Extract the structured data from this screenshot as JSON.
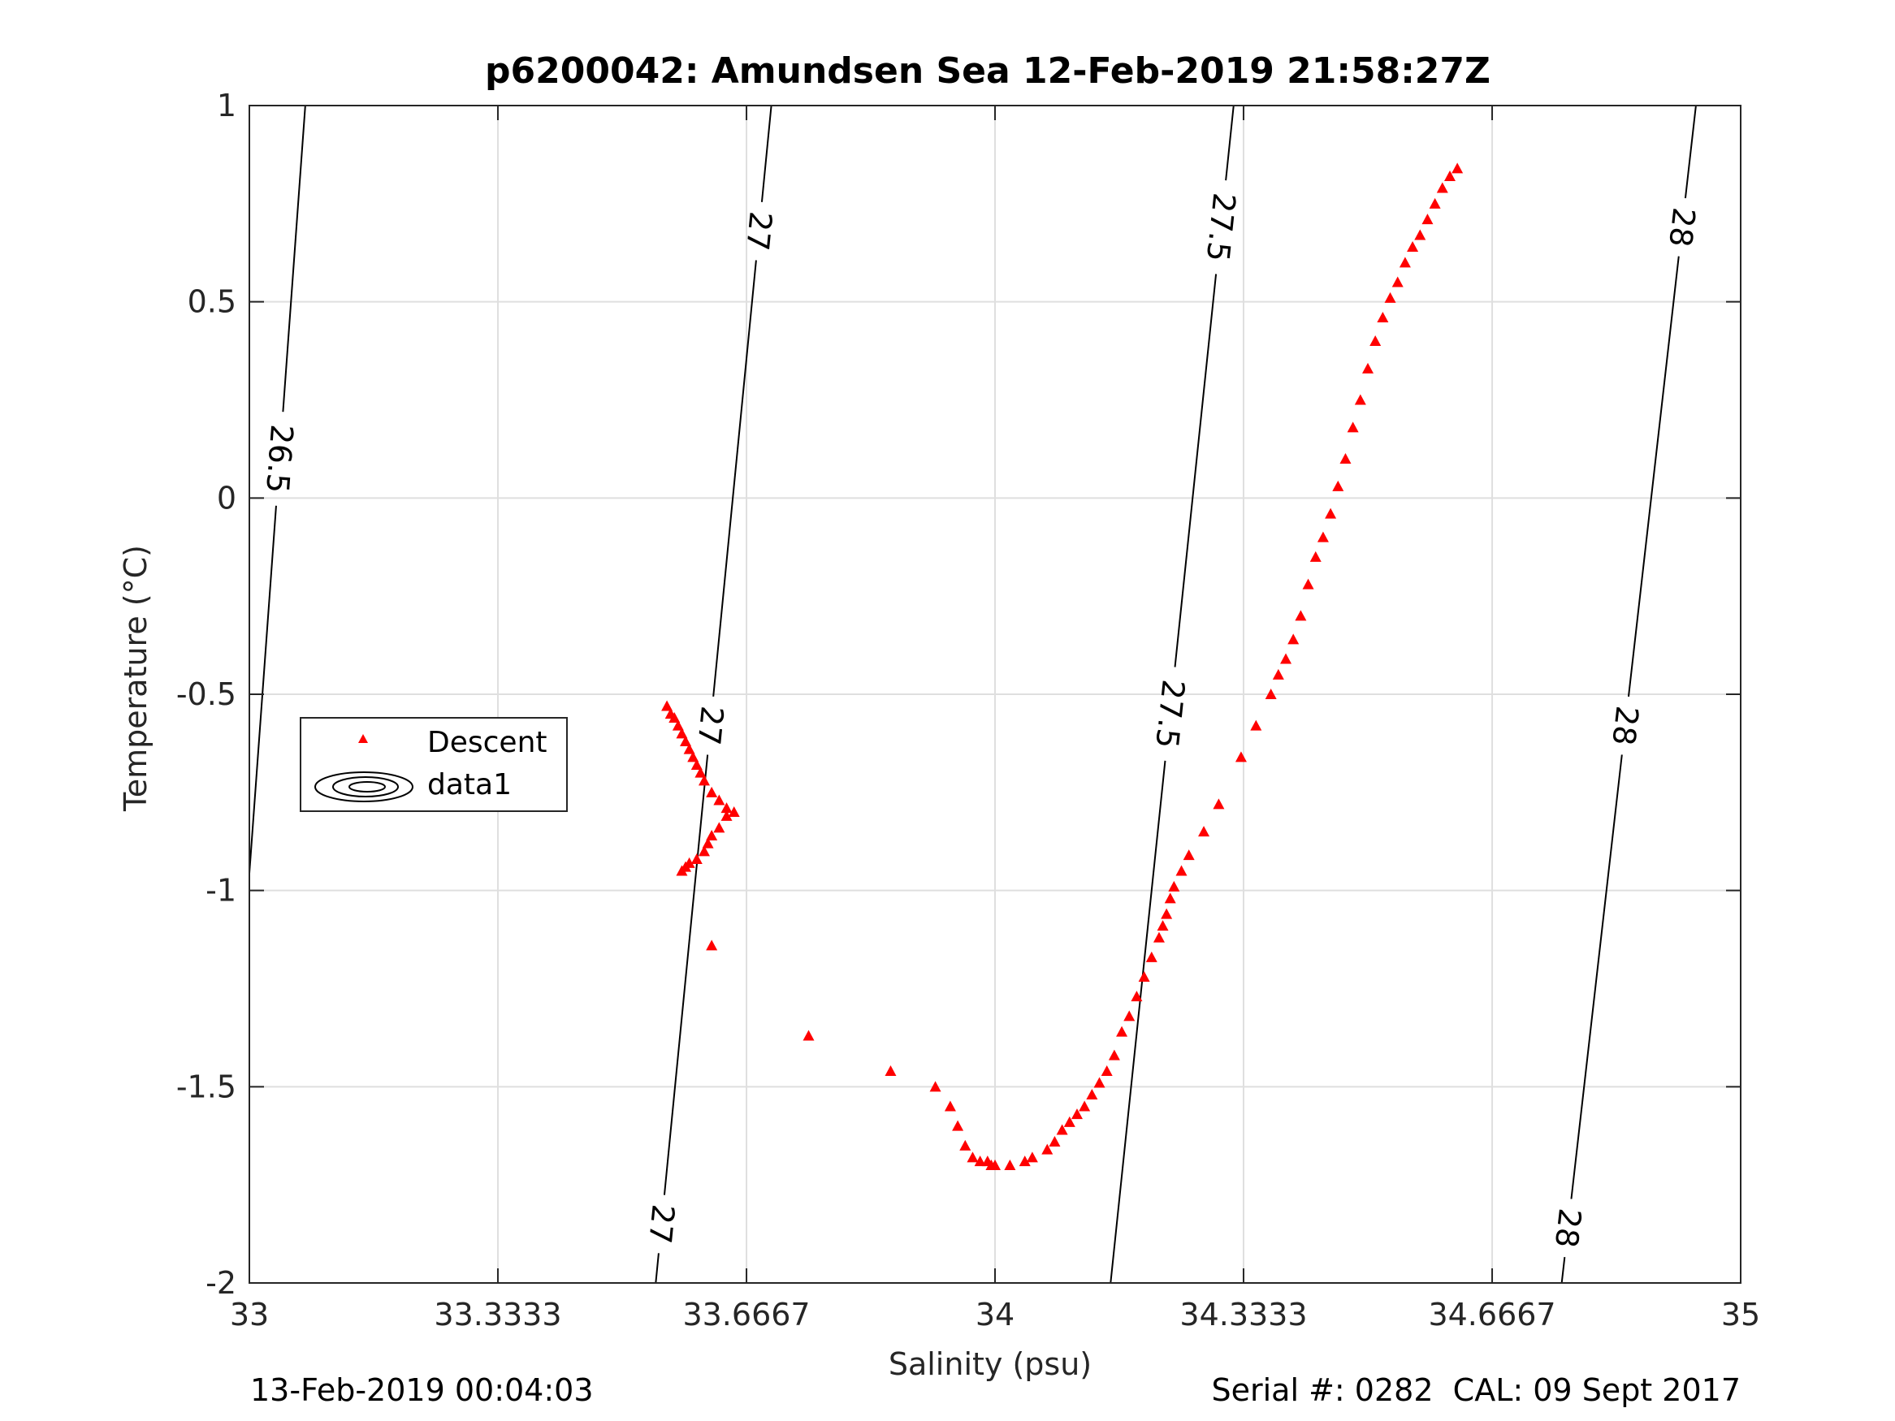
{
  "chart_data": {
    "type": "scatter",
    "title": "p6200042: Amundsen Sea 12-Feb-2019 21:58:27Z",
    "xlabel": "Salinity (psu)",
    "ylabel": "Temperature (°C)",
    "xlim": [
      33,
      35
    ],
    "ylim": [
      -2,
      1
    ],
    "x_ticks": [
      33,
      33.3333,
      33.6667,
      34,
      34.3333,
      34.6667,
      35
    ],
    "x_tick_labels": [
      "33",
      "33.3333",
      "33.6667",
      "34",
      "34.3333",
      "34.6667",
      "35"
    ],
    "y_ticks": [
      -2,
      -1.5,
      -1,
      -0.5,
      0,
      0.5,
      1
    ],
    "y_tick_labels": [
      "-2",
      "-1.5",
      "-1",
      "-0.5",
      "0",
      "0.5",
      "1"
    ],
    "grid": true,
    "legend": {
      "placement": "middle-left",
      "entries": [
        {
          "name": "Descent",
          "marker": "red-triangle"
        },
        {
          "name": "data1",
          "marker": "contour-icon"
        }
      ]
    },
    "series": [
      {
        "name": "Descent",
        "color": "#ff0000",
        "marker": "triangle",
        "x": [
          33.56,
          33.565,
          33.57,
          33.575,
          33.58,
          33.585,
          33.59,
          33.595,
          33.6,
          33.605,
          33.61,
          33.62,
          33.63,
          33.64,
          33.65,
          33.64,
          33.63,
          33.62,
          33.615,
          33.61,
          33.6,
          33.59,
          33.585,
          33.58,
          33.62,
          33.75,
          33.86,
          33.92,
          33.94,
          33.95,
          33.96,
          33.97,
          33.98,
          33.99,
          33.995,
          34.0,
          34.02,
          34.04,
          34.05,
          34.07,
          34.08,
          34.09,
          34.1,
          34.11,
          34.12,
          34.13,
          34.14,
          34.15,
          34.16,
          34.17,
          34.18,
          34.19,
          34.2,
          34.21,
          34.22,
          34.225,
          34.23,
          34.235,
          34.24,
          34.25,
          34.26,
          34.28,
          34.3,
          34.33,
          34.35,
          34.37,
          34.38,
          34.39,
          34.4,
          34.41,
          34.42,
          34.43,
          34.44,
          34.45,
          34.46,
          34.47,
          34.48,
          34.49,
          34.5,
          34.51,
          34.52,
          34.53,
          34.54,
          34.55,
          34.56,
          34.57,
          34.58,
          34.59,
          34.6,
          34.61,
          34.62
        ],
        "y": [
          -0.53,
          -0.55,
          -0.56,
          -0.58,
          -0.6,
          -0.62,
          -0.64,
          -0.66,
          -0.68,
          -0.7,
          -0.72,
          -0.75,
          -0.77,
          -0.79,
          -0.8,
          -0.81,
          -0.84,
          -0.86,
          -0.88,
          -0.9,
          -0.92,
          -0.93,
          -0.94,
          -0.95,
          -1.14,
          -1.37,
          -1.46,
          -1.5,
          -1.55,
          -1.6,
          -1.65,
          -1.68,
          -1.69,
          -1.69,
          -1.7,
          -1.7,
          -1.7,
          -1.69,
          -1.68,
          -1.66,
          -1.64,
          -1.61,
          -1.59,
          -1.57,
          -1.55,
          -1.52,
          -1.49,
          -1.46,
          -1.42,
          -1.36,
          -1.32,
          -1.27,
          -1.22,
          -1.17,
          -1.12,
          -1.09,
          -1.06,
          -1.02,
          -0.99,
          -0.95,
          -0.91,
          -0.85,
          -0.78,
          -0.66,
          -0.58,
          -0.5,
          -0.45,
          -0.41,
          -0.36,
          -0.3,
          -0.22,
          -0.15,
          -0.1,
          -0.04,
          0.03,
          0.1,
          0.18,
          0.25,
          0.33,
          0.4,
          0.46,
          0.51,
          0.55,
          0.6,
          0.64,
          0.67,
          0.71,
          0.75,
          0.79,
          0.82,
          0.84
        ]
      }
    ],
    "isopycnals": [
      {
        "label": "26.5",
        "s_top": 33.075,
        "s_bottom": 32.96,
        "labels_at": [
          0.1
        ]
      },
      {
        "label": "27",
        "s_top": 33.7,
        "s_bottom": 33.545,
        "labels_at": [
          0.68,
          -0.58,
          -1.85
        ]
      },
      {
        "label": "27.5",
        "s_top": 34.32,
        "s_bottom": 34.155,
        "labels_at": [
          0.69,
          -0.55
        ]
      },
      {
        "label": "28",
        "s_top": 34.94,
        "s_bottom": 34.76,
        "labels_at": [
          0.69,
          -0.58,
          -1.86
        ]
      }
    ]
  },
  "footer": {
    "date": "13-Feb-2019 00:04:03",
    "serial": "Serial #: 0282  CAL: 09 Sept 2017"
  }
}
